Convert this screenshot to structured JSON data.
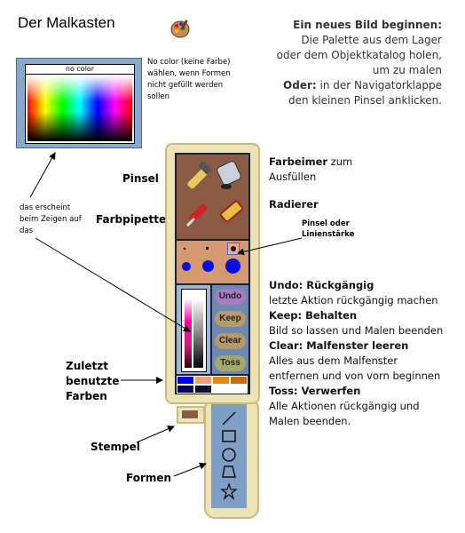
{
  "title": "Der Malkasten",
  "intro": {
    "line1_bold": "Ein neues Bild beginnen:",
    "line2": "Die Palette aus dem Lager",
    "line3": "oder dem Objektkatalog holen,",
    "line4": "um zu malen",
    "line5_bold": "Oder:",
    "line5_rest": " in der Navigatorklappe",
    "line6": "den kleinen Pinsel anklicken."
  },
  "picker": {
    "nocolor_label": "no color",
    "note1": "No color (keine Farbe)",
    "note2": "wählen, wenn Formen",
    "note3": "nicht gefüllt werden",
    "note4": "sollen",
    "appears1": "das erscheint",
    "appears2": "beim Zeigen auf",
    "appears3": "das"
  },
  "labels": {
    "pinsel": "Pinsel",
    "farbpipette": "Farbpipette",
    "farbeimer": "Farbeimer",
    "farbeimer_rest": " zum",
    "ausfuellen": "Ausfüllen",
    "radierer": "Radierer",
    "pinsel_staerke1": "Pinsel oder",
    "pinsel_staerke2": "Linienstärke",
    "zuletzt1": "Zuletzt",
    "zuletzt2": "benutzte",
    "zuletzt3": "Farben",
    "stempel": "Stempel",
    "formen": "Formen"
  },
  "buttons": {
    "undo": "Undo",
    "keep": "Keep",
    "clear": "Clear",
    "toss": "Toss"
  },
  "descriptions": {
    "undo_bold": "Undo: Rückgängig",
    "undo_text": "letzte Aktion rückgängig machen",
    "keep_bold": "Keep: Behalten",
    "keep_text": "Bild so lassen und Malen beenden",
    "clear_bold": "Clear: Malfenster leeren",
    "clear_text1": "Alles aus dem Malfenster",
    "clear_text2": "entfernen und von vorn beginnen",
    "toss_bold": "Toss: Verwerfen",
    "toss_text1": "Alle Aktionen rückgängig und",
    "toss_text2": "Malen beenden."
  },
  "colors": {
    "recent_row1": [
      "#0000ee",
      "#f0a070",
      "#e08a10",
      "#c86a10"
    ],
    "recent_row2": [
      "#000060",
      "#101030",
      "#ffffff",
      "#ffffff"
    ],
    "button_fill": "#b79a6a",
    "undo_fill": "#a77bbf"
  }
}
